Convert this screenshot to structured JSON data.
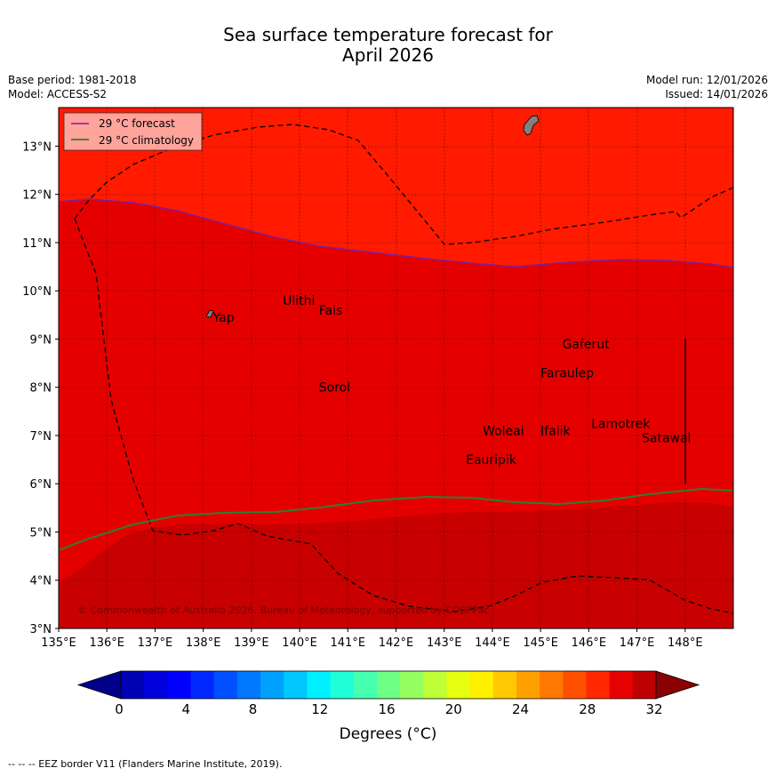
{
  "title_line1": "Sea surface temperature forecast for",
  "title_line2": "April 2026",
  "base_period": "Base period: 1981-2018",
  "model": "Model: ACCESS-S2",
  "model_run": "Model run: 12/01/2026",
  "issued": "Issued: 14/01/2026",
  "legend": {
    "forecast": "29 °C  forecast",
    "climatology": "29 °C  climatology",
    "forecast_color": "#7b1fa2",
    "climatology_color": "#2e7d32"
  },
  "map": {
    "lon_range": [
      135,
      149
    ],
    "lat_range": [
      3,
      13.8
    ],
    "lon_ticks": [
      "135°E",
      "136°E",
      "137°E",
      "138°E",
      "139°E",
      "140°E",
      "141°E",
      "142°E",
      "143°E",
      "144°E",
      "145°E",
      "146°E",
      "147°E",
      "148°E"
    ],
    "lat_ticks": [
      "3°N",
      "4°N",
      "5°N",
      "6°N",
      "7°N",
      "8°N",
      "9°N",
      "10°N",
      "11°N",
      "12°N",
      "13°N"
    ],
    "colors": {
      "warm_high": "#ff1a00",
      "warm_mid": "#e50000",
      "warm_low": "#c80000",
      "land": "#808080"
    },
    "places": [
      {
        "name": "Yap",
        "lon": 138.2,
        "lat": 9.45
      },
      {
        "name": "Ulithi",
        "lon": 139.65,
        "lat": 9.8
      },
      {
        "name": "Fais",
        "lon": 140.4,
        "lat": 9.6
      },
      {
        "name": "Gaferut",
        "lon": 145.45,
        "lat": 8.9
      },
      {
        "name": "Faraulep",
        "lon": 145.0,
        "lat": 8.3
      },
      {
        "name": "Sorol",
        "lon": 140.4,
        "lat": 8.0
      },
      {
        "name": "Woleai",
        "lon": 143.8,
        "lat": 7.1
      },
      {
        "name": "Ifalik",
        "lon": 145.0,
        "lat": 7.1
      },
      {
        "name": "Lamotrek",
        "lon": 146.05,
        "lat": 7.25
      },
      {
        "name": "Satawal",
        "lon": 147.1,
        "lat": 6.95
      },
      {
        "name": "Eauripik",
        "lon": 143.45,
        "lat": 6.5
      }
    ],
    "copyright": "© Commonwealth of Australia 2026, Bureau of Meteorology, supported by COSPPac"
  },
  "colorbar": {
    "colors": [
      "#00008b",
      "#0000b4",
      "#0000dc",
      "#0000ff",
      "#0028ff",
      "#0050ff",
      "#0078ff",
      "#00a0ff",
      "#00c8ff",
      "#00f0ff",
      "#1effd7",
      "#46ffaf",
      "#6eff87",
      "#96ff5f",
      "#beff37",
      "#e6ff0f",
      "#fff000",
      "#ffc800",
      "#ffa000",
      "#ff7800",
      "#ff5000",
      "#ff2800",
      "#e60000",
      "#be0000",
      "#8b0000"
    ],
    "ticks": [
      "0",
      "4",
      "8",
      "12",
      "16",
      "20",
      "24",
      "28",
      "32"
    ],
    "label": "Degrees (°C)"
  },
  "footnote": "--  --  -- EEZ border V11 (Flanders Marine Institute, 2019)."
}
